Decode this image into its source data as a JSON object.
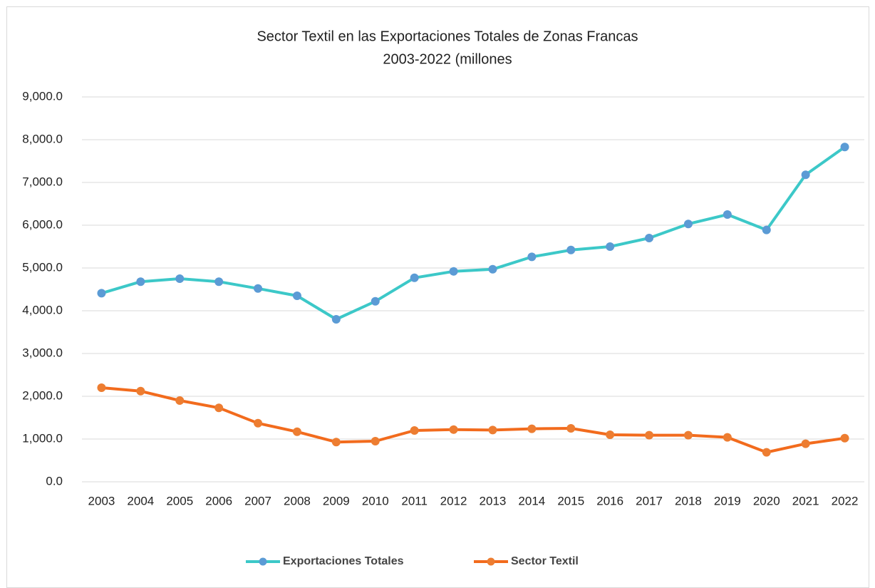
{
  "chart_data": {
    "type": "line",
    "title": "Sector Textil en las Exportaciones Totales de Zonas Francas",
    "subtitle": "2003-2022 (millones",
    "categories": [
      "2003",
      "2004",
      "2005",
      "2006",
      "2007",
      "2008",
      "2009",
      "2010",
      "2011",
      "2012",
      "2013",
      "2014",
      "2015",
      "2016",
      "2017",
      "2018",
      "2019",
      "2020",
      "2021",
      "2022"
    ],
    "series": [
      {
        "name": "Exportaciones Totales",
        "color": "#3cc8c8",
        "marker_color": "#5b9bd5",
        "values": [
          4410,
          4680,
          4750,
          4680,
          4520,
          4350,
          3800,
          4220,
          4770,
          4920,
          4970,
          5260,
          5420,
          5500,
          5700,
          6030,
          6250,
          5890,
          7180,
          7830
        ]
      },
      {
        "name": "Sector Textil",
        "color": "#f26b1d",
        "marker_color": "#ed7d31",
        "values": [
          2200,
          2120,
          1900,
          1730,
          1370,
          1170,
          930,
          950,
          1200,
          1220,
          1210,
          1240,
          1250,
          1100,
          1090,
          1090,
          1040,
          690,
          890,
          1020
        ]
      }
    ],
    "ylim": [
      0,
      9000
    ],
    "yticks": [
      {
        "value": 0,
        "label": "0.0"
      },
      {
        "value": 1000,
        "label": "1,000.0"
      },
      {
        "value": 2000,
        "label": "2,000.0"
      },
      {
        "value": 3000,
        "label": "3,000.0"
      },
      {
        "value": 4000,
        "label": "4,000.0"
      },
      {
        "value": 5000,
        "label": "5,000.0"
      },
      {
        "value": 6000,
        "label": "6,000.0"
      },
      {
        "value": 7000,
        "label": "7,000.0"
      },
      {
        "value": 8000,
        "label": "8,000.0"
      },
      {
        "value": 9000,
        "label": "9,000.0"
      }
    ],
    "grid": true,
    "legend": "bottom"
  }
}
